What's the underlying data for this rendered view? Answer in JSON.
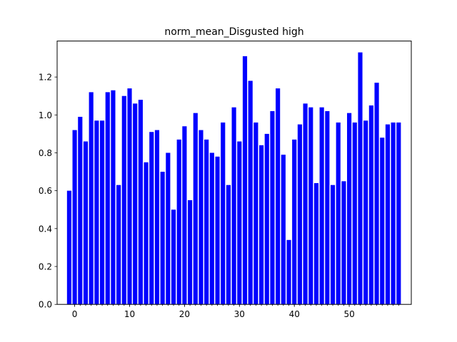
{
  "chart_data": {
    "type": "bar",
    "title": "norm_mean_Disgusted high",
    "xlabel": "",
    "ylabel": "",
    "bar_color": "#0000ff",
    "xlim": [
      -3.2,
      61.3
    ],
    "ylim": [
      0,
      1.39
    ],
    "x_ticks": [
      0,
      10,
      20,
      30,
      40,
      50
    ],
    "y_ticks": [
      0.0,
      0.2,
      0.4,
      0.6,
      0.8,
      1.0,
      1.2
    ],
    "x": [
      -1,
      0,
      1,
      2,
      3,
      4,
      5,
      6,
      7,
      8,
      9,
      10,
      11,
      12,
      13,
      14,
      15,
      16,
      17,
      18,
      19,
      20,
      21,
      22,
      23,
      24,
      25,
      26,
      27,
      28,
      29,
      30,
      31,
      32,
      33,
      34,
      35,
      36,
      37,
      38,
      39,
      40,
      41,
      42,
      43,
      44,
      45,
      46,
      47,
      48,
      49,
      50,
      51,
      52,
      53,
      54,
      55,
      56,
      57,
      58,
      59
    ],
    "values": [
      0.6,
      0.92,
      0.99,
      0.86,
      1.12,
      0.97,
      0.97,
      1.12,
      1.13,
      0.63,
      1.1,
      1.14,
      1.06,
      1.08,
      0.75,
      0.91,
      0.92,
      0.7,
      0.8,
      0.5,
      0.87,
      0.94,
      0.55,
      1.01,
      0.92,
      0.87,
      0.8,
      0.78,
      0.96,
      0.63,
      1.04,
      0.86,
      1.31,
      1.18,
      0.96,
      0.84,
      0.9,
      1.02,
      1.14,
      0.79,
      0.34,
      0.87,
      0.95,
      1.06,
      1.04,
      0.64,
      1.04,
      1.02,
      0.63,
      0.96,
      0.65,
      1.01,
      0.96,
      1.33,
      0.97,
      1.05,
      1.17,
      0.88,
      0.95,
      0.96,
      0.96
    ],
    "grid": false,
    "legend": "none"
  }
}
